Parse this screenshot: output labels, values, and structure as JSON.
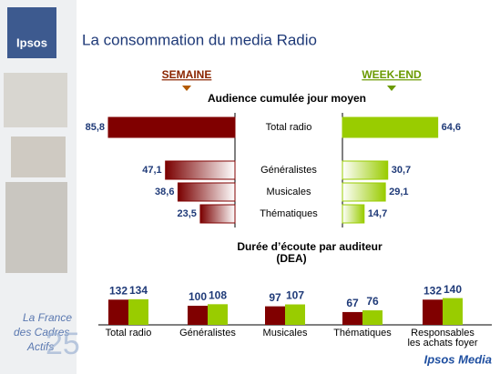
{
  "header": {
    "title": "La consommation du media Radio",
    "logo": "Ipsos"
  },
  "branding": {
    "footer": "Ipsos Media",
    "edition": [
      "La France",
      "des Cadres",
      "Actifs"
    ],
    "edition_number": "25"
  },
  "chart_data": [
    {
      "type": "butterfly",
      "title": "Audience cumulée jour moyen",
      "categories": [
        "Total radio",
        "Généralistes",
        "Musicales",
        "Thématiques"
      ],
      "series": [
        {
          "name": "SEMAINE",
          "color": "#800000",
          "values": [
            85.8,
            47.1,
            38.6,
            23.5
          ],
          "value_labels": [
            "85,8",
            "47,1",
            "38,6",
            "23,5"
          ]
        },
        {
          "name": "WEEK-END",
          "color": "#99cc00",
          "values": [
            64.6,
            30.7,
            29.1,
            14.7
          ],
          "value_labels": [
            "64,6",
            "30,7",
            "29,1",
            "14,7"
          ]
        }
      ]
    },
    {
      "type": "grouped-bar",
      "title": "Durée d’écoute par auditeur",
      "subtitle": "(DEA)",
      "categories": [
        "Total radio",
        "Généralistes",
        "Musicales",
        "Thématiques",
        "Responsables\nles achats foyer"
      ],
      "series": [
        {
          "color": "#800000",
          "values": [
            132,
            100,
            97,
            67,
            132
          ]
        },
        {
          "color": "#99cc00",
          "values": [
            134,
            108,
            107,
            76,
            140
          ]
        }
      ]
    }
  ]
}
